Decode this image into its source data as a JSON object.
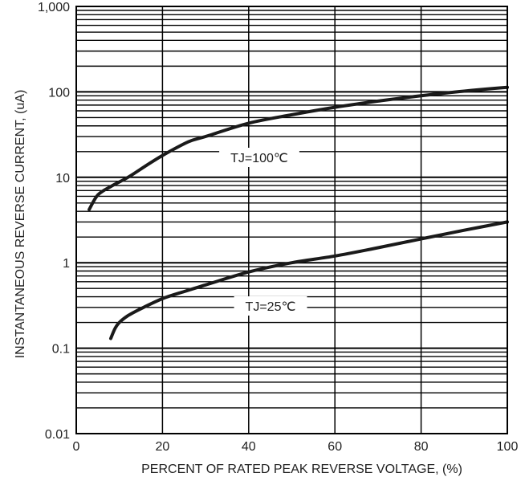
{
  "chart_data": {
    "type": "line",
    "xlabel": "PERCENT OF RATED PEAK REVERSE VOLTAGE, (%)",
    "ylabel": "INSTANTANEOUS REVERSE CURRENT, (uA)",
    "xlim": [
      0,
      100
    ],
    "ylim": [
      0.01,
      1000
    ],
    "y_scale": "log",
    "grid": true,
    "x_ticks": [
      {
        "value": 0,
        "label": "0"
      },
      {
        "value": 20,
        "label": "20"
      },
      {
        "value": 40,
        "label": "40"
      },
      {
        "value": 60,
        "label": "60"
      },
      {
        "value": 80,
        "label": "80"
      },
      {
        "value": 100,
        "label": "100"
      }
    ],
    "y_ticks": [
      {
        "value": 0.01,
        "label": "0.01"
      },
      {
        "value": 0.1,
        "label": "0.1"
      },
      {
        "value": 1,
        "label": "1"
      },
      {
        "value": 10,
        "label": "10"
      },
      {
        "value": 100,
        "label": "100"
      },
      {
        "value": 1000,
        "label": "1,000"
      }
    ],
    "series": [
      {
        "name": "TJ=100℃",
        "x": [
          3,
          5,
          8,
          12,
          16,
          20,
          26,
          30,
          40,
          50,
          60,
          70,
          80,
          90,
          100
        ],
        "y": [
          4.2,
          6.2,
          7.8,
          10,
          13.5,
          18,
          26,
          30,
          43,
          54,
          66,
          78,
          90,
          102,
          113
        ]
      },
      {
        "name": "TJ=25℃",
        "x": [
          8,
          9,
          10,
          12,
          15,
          20,
          25,
          30,
          40,
          50,
          60,
          70,
          80,
          90,
          100
        ],
        "y": [
          0.13,
          0.17,
          0.2,
          0.24,
          0.29,
          0.38,
          0.46,
          0.55,
          0.78,
          1.0,
          1.2,
          1.5,
          1.9,
          2.4,
          3.0
        ]
      }
    ],
    "annotations": [
      {
        "text": "TJ=100℃",
        "series": 0
      },
      {
        "text": "TJ=25℃",
        "series": 1
      }
    ]
  }
}
